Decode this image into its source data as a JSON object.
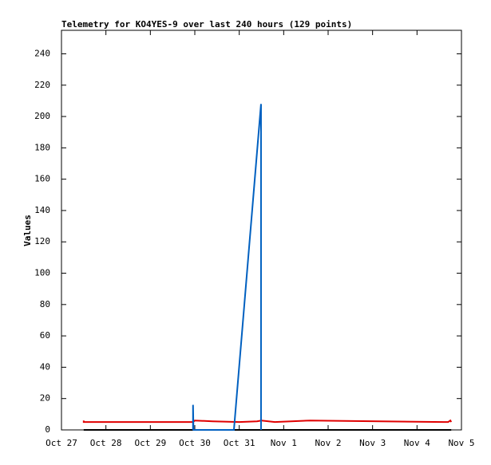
{
  "chart_data": {
    "type": "line",
    "title": "Telemetry for KO4YES-9 over last 240 hours (129 points)",
    "y_label": "Values",
    "xlim": [
      0,
      9
    ],
    "xticks": [
      {
        "value": 0,
        "label": "Oct 27"
      },
      {
        "value": 1,
        "label": "Oct 28"
      },
      {
        "value": 2,
        "label": "Oct 29"
      },
      {
        "value": 3,
        "label": "Oct 30"
      },
      {
        "value": 4,
        "label": "Oct 31"
      },
      {
        "value": 5,
        "label": "Nov 1"
      },
      {
        "value": 6,
        "label": "Nov 2"
      },
      {
        "value": 7,
        "label": "Nov 3"
      },
      {
        "value": 8,
        "label": "Nov 4"
      },
      {
        "value": 9,
        "label": "Nov 5"
      }
    ],
    "ylim": [
      0,
      255
    ],
    "yticks": [
      0,
      20,
      40,
      60,
      80,
      100,
      120,
      140,
      160,
      180,
      200,
      220,
      240
    ],
    "series": [
      {
        "color": "#000000",
        "x": [
          0.5,
          8.77
        ],
        "values": [
          0,
          0
        ]
      },
      {
        "color": "#e00000",
        "x": [
          0.5,
          0.5,
          2.96,
          3.0,
          3.4,
          4.0,
          4.4,
          4.5,
          4.8,
          5.6,
          5.6,
          8.6,
          8.7,
          8.75,
          8.77
        ],
        "values": [
          6,
          5,
          5,
          6,
          5.5,
          5,
          5.5,
          6,
          5,
          6,
          6,
          5,
          5,
          6,
          5
        ]
      },
      {
        "color": "#0060c0",
        "x": [
          2.96,
          2.96,
          2.97,
          3.88,
          4.49,
          4.49
        ],
        "values": [
          0,
          16,
          0,
          0,
          208,
          0
        ]
      }
    ]
  }
}
